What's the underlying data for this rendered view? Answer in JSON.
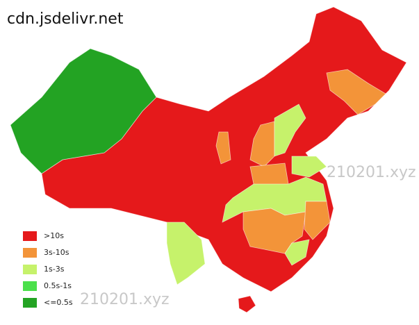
{
  "title": "cdn.jsdelivr.net",
  "legend": [
    {
      "label": ">10s",
      "color": "#e5191b"
    },
    {
      "label": "3s-10s",
      "color": "#f39439"
    },
    {
      "label": "1s-3s",
      "color": "#c6f26b"
    },
    {
      "label": "0.5s-1s",
      "color": "#4be04b"
    },
    {
      "label": "<=0.5s",
      "color": "#23a323"
    }
  ],
  "watermarks": [
    "210201.xyz",
    "210201.xyz"
  ]
}
